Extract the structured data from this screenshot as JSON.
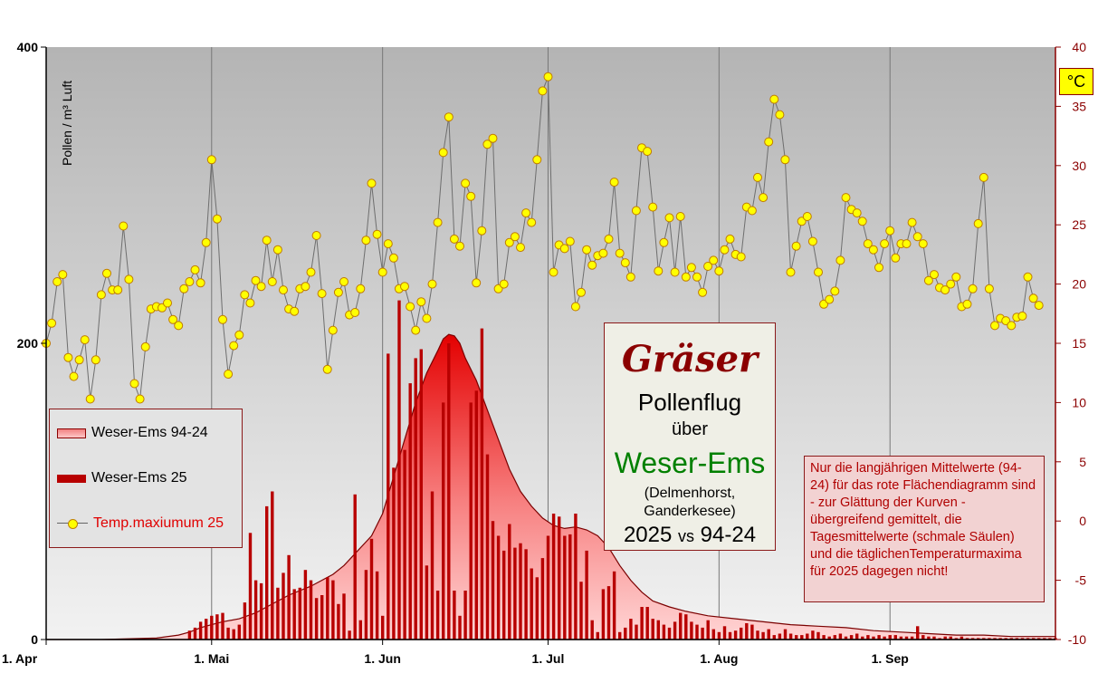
{
  "chart_data": {
    "type": "bar+area+line",
    "title": "Gräser",
    "subtitle_lines": [
      "Pollenflug",
      "über",
      "Weser-Ems",
      "(Delmenhorst,",
      "Ganderkesee)",
      "2025",
      "vs",
      "94-24"
    ],
    "ylabel": "Pollen / m³ Luft",
    "ylim": [
      0,
      400
    ],
    "y_ticks": [
      "0",
      "200",
      "400"
    ],
    "y2_unit": "°C",
    "y2lim": [
      -10,
      40
    ],
    "y2_ticks": [
      "-10",
      "-5",
      "0",
      "5",
      "10",
      "15",
      "20",
      "25",
      "30",
      "35",
      "40"
    ],
    "x_range_days": [
      0,
      183
    ],
    "x_ticks": [
      {
        "day": 0,
        "label": "1. Apr"
      },
      {
        "day": 30,
        "label": "1. Mai"
      },
      {
        "day": 61,
        "label": "1. Jun"
      },
      {
        "day": 91,
        "label": "1. Jul"
      },
      {
        "day": 122,
        "label": "1. Aug"
      },
      {
        "day": 153,
        "label": "1. Sep"
      }
    ],
    "grid_x": true,
    "legend_position": "left",
    "series": [
      {
        "name": "Weser-Ems 94-24",
        "kind": "area",
        "color": "#e00000",
        "points": [
          [
            0,
            0
          ],
          [
            10,
            0
          ],
          [
            20,
            1
          ],
          [
            24,
            3
          ],
          [
            26,
            5
          ],
          [
            28,
            8
          ],
          [
            30,
            10
          ],
          [
            32,
            12
          ],
          [
            35,
            14
          ],
          [
            38,
            18
          ],
          [
            40,
            22
          ],
          [
            42,
            26
          ],
          [
            44,
            30
          ],
          [
            46,
            33
          ],
          [
            48,
            36
          ],
          [
            50,
            40
          ],
          [
            52,
            44
          ],
          [
            54,
            50
          ],
          [
            56,
            58
          ],
          [
            58,
            66
          ],
          [
            59,
            70
          ],
          [
            61,
            85
          ],
          [
            63,
            110
          ],
          [
            65,
            135
          ],
          [
            67,
            160
          ],
          [
            69,
            180
          ],
          [
            71,
            195
          ],
          [
            72,
            203
          ],
          [
            73,
            206
          ],
          [
            74,
            205
          ],
          [
            75,
            200
          ],
          [
            76,
            190
          ],
          [
            78,
            175
          ],
          [
            80,
            155
          ],
          [
            82,
            135
          ],
          [
            84,
            115
          ],
          [
            86,
            100
          ],
          [
            88,
            90
          ],
          [
            90,
            82
          ],
          [
            92,
            77
          ],
          [
            94,
            75
          ],
          [
            96,
            76
          ],
          [
            98,
            74
          ],
          [
            100,
            70
          ],
          [
            102,
            62
          ],
          [
            104,
            50
          ],
          [
            106,
            40
          ],
          [
            108,
            32
          ],
          [
            110,
            26
          ],
          [
            113,
            22
          ],
          [
            116,
            19
          ],
          [
            120,
            16
          ],
          [
            125,
            14
          ],
          [
            130,
            12
          ],
          [
            135,
            10
          ],
          [
            140,
            9
          ],
          [
            145,
            8
          ],
          [
            150,
            6
          ],
          [
            155,
            5
          ],
          [
            160,
            4
          ],
          [
            165,
            3
          ],
          [
            170,
            3
          ],
          [
            175,
            2
          ],
          [
            180,
            2
          ],
          [
            183,
            2
          ]
        ]
      },
      {
        "name": "Weser-Ems 25",
        "kind": "bar",
        "color": "#b80000",
        "points": [
          [
            26,
            6
          ],
          [
            27,
            8
          ],
          [
            28,
            12
          ],
          [
            29,
            14
          ],
          [
            30,
            16
          ],
          [
            31,
            17
          ],
          [
            32,
            18
          ],
          [
            33,
            8
          ],
          [
            34,
            7
          ],
          [
            35,
            10
          ],
          [
            36,
            25
          ],
          [
            37,
            72
          ],
          [
            38,
            40
          ],
          [
            39,
            38
          ],
          [
            40,
            90
          ],
          [
            41,
            100
          ],
          [
            42,
            35
          ],
          [
            43,
            45
          ],
          [
            44,
            57
          ],
          [
            45,
            34
          ],
          [
            46,
            35
          ],
          [
            47,
            47
          ],
          [
            48,
            40
          ],
          [
            49,
            28
          ],
          [
            50,
            30
          ],
          [
            51,
            42
          ],
          [
            52,
            40
          ],
          [
            53,
            24
          ],
          [
            54,
            31
          ],
          [
            55,
            6
          ],
          [
            56,
            98
          ],
          [
            57,
            13
          ],
          [
            58,
            47
          ],
          [
            59,
            68
          ],
          [
            60,
            46
          ],
          [
            61,
            16
          ],
          [
            62,
            193
          ],
          [
            63,
            116
          ],
          [
            64,
            229
          ],
          [
            65,
            128
          ],
          [
            66,
            173
          ],
          [
            67,
            190
          ],
          [
            68,
            196
          ],
          [
            69,
            50
          ],
          [
            70,
            100
          ],
          [
            71,
            33
          ],
          [
            72,
            160
          ],
          [
            73,
            200
          ],
          [
            74,
            33
          ],
          [
            75,
            16
          ],
          [
            76,
            33
          ],
          [
            77,
            160
          ],
          [
            78,
            168
          ],
          [
            79,
            210
          ],
          [
            80,
            125
          ],
          [
            81,
            80
          ],
          [
            82,
            70
          ],
          [
            83,
            60
          ],
          [
            84,
            78
          ],
          [
            85,
            62
          ],
          [
            86,
            65
          ],
          [
            87,
            61
          ],
          [
            88,
            48
          ],
          [
            89,
            42
          ],
          [
            90,
            55
          ],
          [
            91,
            70
          ],
          [
            92,
            85
          ],
          [
            93,
            83
          ],
          [
            94,
            70
          ],
          [
            95,
            71
          ],
          [
            96,
            85
          ],
          [
            97,
            39
          ],
          [
            98,
            60
          ],
          [
            99,
            13
          ],
          [
            100,
            5
          ],
          [
            101,
            34
          ],
          [
            102,
            36
          ],
          [
            103,
            46
          ],
          [
            104,
            5
          ],
          [
            105,
            8
          ],
          [
            106,
            14
          ],
          [
            107,
            10
          ],
          [
            108,
            22
          ],
          [
            109,
            22
          ],
          [
            110,
            14
          ],
          [
            111,
            13
          ],
          [
            112,
            10
          ],
          [
            113,
            8
          ],
          [
            114,
            12
          ],
          [
            115,
            18
          ],
          [
            116,
            17
          ],
          [
            117,
            12
          ],
          [
            118,
            10
          ],
          [
            119,
            8
          ],
          [
            120,
            13
          ],
          [
            121,
            7
          ],
          [
            122,
            5
          ],
          [
            123,
            9
          ],
          [
            124,
            5
          ],
          [
            125,
            6
          ],
          [
            126,
            8
          ],
          [
            127,
            11
          ],
          [
            128,
            10
          ],
          [
            129,
            6
          ],
          [
            130,
            5
          ],
          [
            131,
            7
          ],
          [
            132,
            3
          ],
          [
            133,
            4
          ],
          [
            134,
            7
          ],
          [
            135,
            4
          ],
          [
            136,
            3
          ],
          [
            137,
            3
          ],
          [
            138,
            4
          ],
          [
            139,
            6
          ],
          [
            140,
            5
          ],
          [
            141,
            3
          ],
          [
            142,
            2
          ],
          [
            143,
            3
          ],
          [
            144,
            4
          ],
          [
            145,
            2
          ],
          [
            146,
            3
          ],
          [
            147,
            4
          ],
          [
            148,
            2
          ],
          [
            149,
            3
          ],
          [
            150,
            2
          ],
          [
            151,
            3
          ],
          [
            152,
            2
          ],
          [
            153,
            3
          ],
          [
            154,
            3
          ],
          [
            155,
            2
          ],
          [
            156,
            2
          ],
          [
            157,
            2
          ],
          [
            158,
            9
          ],
          [
            159,
            3
          ],
          [
            160,
            2
          ],
          [
            161,
            2
          ],
          [
            162,
            1
          ],
          [
            163,
            2
          ],
          [
            164,
            2
          ],
          [
            165,
            1
          ],
          [
            166,
            2
          ],
          [
            167,
            1
          ],
          [
            168,
            1
          ],
          [
            169,
            1
          ],
          [
            170,
            1
          ],
          [
            171,
            1
          ],
          [
            172,
            1
          ],
          [
            173,
            1
          ],
          [
            174,
            1
          ],
          [
            175,
            1
          ],
          [
            176,
            1
          ],
          [
            177,
            1
          ],
          [
            178,
            1
          ],
          [
            179,
            1
          ],
          [
            180,
            1
          ],
          [
            181,
            1
          ],
          [
            182,
            1
          ],
          [
            183,
            1
          ]
        ]
      },
      {
        "name": "Temp.maxiumum 25",
        "kind": "line",
        "axis": "right",
        "color": "#ffff00",
        "values": [
          15.0,
          16.7,
          20.2,
          20.8,
          13.8,
          12.2,
          13.6,
          15.3,
          10.3,
          13.6,
          19.1,
          20.9,
          19.5,
          19.5,
          24.9,
          20.4,
          11.6,
          10.3,
          14.7,
          17.9,
          18.1,
          18.0,
          18.4,
          17.0,
          16.5,
          19.6,
          20.2,
          21.2,
          20.1,
          23.5,
          30.5,
          25.5,
          17.0,
          12.4,
          14.8,
          15.7,
          19.1,
          18.4,
          20.3,
          19.8,
          23.7,
          20.2,
          22.9,
          19.5,
          17.9,
          17.7,
          19.6,
          19.8,
          21.0,
          24.1,
          19.2,
          12.8,
          16.1,
          19.3,
          20.2,
          17.4,
          17.6,
          19.6,
          23.7,
          28.5,
          24.2,
          21.0,
          23.4,
          22.2,
          19.6,
          19.8,
          18.1,
          16.1,
          18.5,
          17.1,
          20.0,
          25.2,
          31.1,
          34.1,
          23.8,
          23.2,
          28.5,
          27.4,
          20.1,
          24.5,
          31.8,
          32.3,
          19.6,
          20.0,
          23.5,
          24.0,
          23.1,
          26.0,
          25.2,
          30.5,
          36.3,
          37.5,
          21.0,
          23.3,
          23.0,
          23.6,
          18.1,
          19.3,
          22.9,
          21.6,
          22.4,
          22.6,
          23.8,
          28.6,
          22.6,
          21.8,
          20.6,
          26.2,
          31.5,
          31.2,
          26.5,
          21.1,
          23.5,
          25.6,
          21.0,
          25.7,
          20.6,
          21.4,
          20.6,
          19.3,
          21.5,
          22.0,
          21.1,
          22.9,
          23.8,
          22.5,
          22.3,
          26.5,
          26.2,
          29.0,
          27.3,
          32.0,
          35.6,
          34.3,
          30.5,
          21.0,
          23.2,
          25.3,
          25.7,
          23.6,
          21.0,
          18.3,
          18.7,
          19.4,
          22.0,
          27.3,
          26.3,
          26.0,
          25.3,
          23.4,
          22.9,
          21.4,
          23.4,
          24.5,
          22.2,
          23.4,
          23.4,
          25.2,
          24.0,
          23.4,
          20.3,
          20.8,
          19.7,
          19.5,
          20.0,
          20.6,
          18.1,
          18.3,
          19.6,
          25.1,
          29.0,
          19.6,
          16.5,
          17.1,
          16.9,
          16.5,
          17.2,
          17.3,
          20.6,
          18.8,
          18.2
        ]
      }
    ]
  },
  "legend": {
    "area_label": "Weser-Ems 94-24",
    "bar_label": "Weser-Ems 25",
    "temp_label": "Temp.maxiumum 25"
  },
  "title_box": {
    "title": "Gräser",
    "line1": "Pollenflug",
    "line2": "über",
    "region": "Weser-Ems",
    "places_line1": "(Delmenhorst,",
    "places_line2": "Ganderkesee)",
    "year": "2025",
    "vs": "vs",
    "compare": "94-24"
  },
  "note": "Nur die langjährigen Mittelwerte (94-24) für das rote Flächendiagramm sind - zur Glättung der Kurven - übergreifend gemittelt, die Tagesmittelwerte (schmale Säulen) und die täglichenTemperaturmaxima für 2025 dagegen nicht!",
  "colors": {
    "plot_bg_top": "#b4b4b4",
    "plot_bg_bottom": "#f0f0f0",
    "area": "#e00000",
    "bars": "#b80000",
    "temp_marker": "#ffff00",
    "right_axis": "#8b0000",
    "region_text": "#008000"
  }
}
